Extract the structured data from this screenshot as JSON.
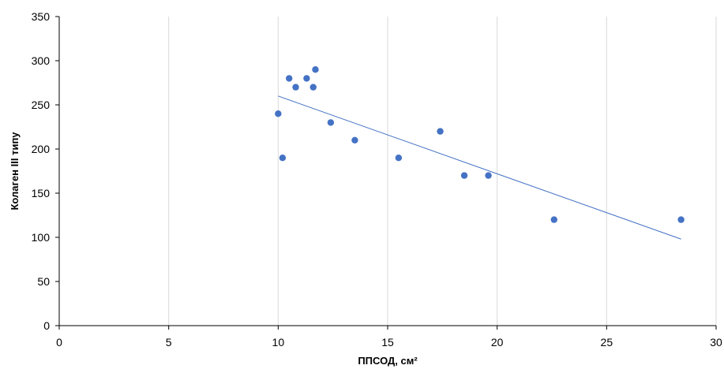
{
  "chart_data": {
    "type": "scatter",
    "title": "",
    "xlabel": "ППСОД, см²",
    "ylabel": "Колаген ІІІ типу",
    "xlim": [
      0,
      30
    ],
    "ylim": [
      0,
      350
    ],
    "x_ticks": [
      "0",
      "5",
      "10",
      "15",
      "20",
      "25",
      "30"
    ],
    "y_ticks": [
      "0",
      "50",
      "100",
      "150",
      "200",
      "250",
      "300",
      "350"
    ],
    "grid": "vertical",
    "marker_color": "#4472C4",
    "trendline_color": "#4472C4",
    "series": [
      {
        "points": [
          {
            "x": 10.0,
            "y": 240
          },
          {
            "x": 10.2,
            "y": 190
          },
          {
            "x": 10.5,
            "y": 280
          },
          {
            "x": 10.8,
            "y": 270
          },
          {
            "x": 11.3,
            "y": 280
          },
          {
            "x": 11.6,
            "y": 270
          },
          {
            "x": 11.7,
            "y": 290
          },
          {
            "x": 12.4,
            "y": 230
          },
          {
            "x": 13.5,
            "y": 210
          },
          {
            "x": 15.5,
            "y": 190
          },
          {
            "x": 17.4,
            "y": 220
          },
          {
            "x": 18.5,
            "y": 170
          },
          {
            "x": 19.6,
            "y": 170
          },
          {
            "x": 22.6,
            "y": 120
          },
          {
            "x": 28.4,
            "y": 120
          }
        ]
      }
    ],
    "trendline": {
      "type": "linear",
      "x_start": 10.0,
      "y_start": 260,
      "x_end": 28.4,
      "y_end": 98
    }
  }
}
